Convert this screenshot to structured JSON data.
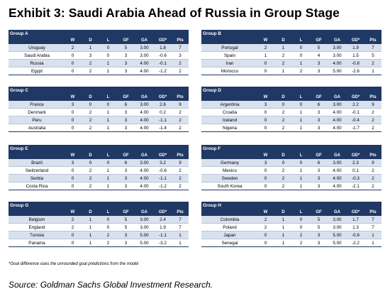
{
  "title": "Exhibit 3:  Saudi Arabia Ahead of Russia in Group Stage",
  "columns": [
    "",
    "W",
    "D",
    "L",
    "GF",
    "GA",
    "GD*",
    "Pts"
  ],
  "groups": [
    {
      "name": "Group A",
      "rows": [
        [
          "Uruguay",
          "2",
          "1",
          "0",
          "5",
          "3.00",
          "1.8",
          "7"
        ],
        [
          "Saudi Arabia",
          "0",
          "3",
          "0",
          "3",
          "3.00",
          "-0.6",
          "3"
        ],
        [
          "Russia",
          "0",
          "2",
          "1",
          "3",
          "4.00",
          "-0.1",
          "2"
        ],
        [
          "Egypt",
          "0",
          "2",
          "1",
          "3",
          "4.00",
          "-1.2",
          "2"
        ]
      ]
    },
    {
      "name": "Group B",
      "rows": [
        [
          "Portugal",
          "2",
          "1",
          "0",
          "5",
          "3.00",
          "1.9",
          "7"
        ],
        [
          "Spain",
          "1",
          "2",
          "0",
          "4",
          "3.00",
          "1.5",
          "5"
        ],
        [
          "Iran",
          "0",
          "2",
          "1",
          "3",
          "4.00",
          "-0.8",
          "2"
        ],
        [
          "Morocco",
          "0",
          "1",
          "2",
          "3",
          "5.00",
          "-2.6",
          "1"
        ]
      ]
    },
    {
      "name": "Group C",
      "rows": [
        [
          "France",
          "3",
          "0",
          "0",
          "6",
          "3.00",
          "2.6",
          "9"
        ],
        [
          "Denmark",
          "0",
          "2",
          "1",
          "3",
          "4.00",
          "0.2",
          "2"
        ],
        [
          "Peru",
          "0",
          "2",
          "1",
          "3",
          "4.00",
          "-1.1",
          "2"
        ],
        [
          "Australia",
          "0",
          "2",
          "1",
          "3",
          "4.00",
          "-1.4",
          "2"
        ]
      ]
    },
    {
      "name": "Group D",
      "rows": [
        [
          "Argentina",
          "3",
          "0",
          "0",
          "6",
          "3.00",
          "2.2",
          "9"
        ],
        [
          "Croatia",
          "0",
          "2",
          "1",
          "3",
          "4.00",
          "-0.1",
          "2"
        ],
        [
          "Iceland",
          "0",
          "2",
          "1",
          "3",
          "4.00",
          "-0.4",
          "2"
        ],
        [
          "Nigeria",
          "0",
          "2",
          "1",
          "3",
          "4.00",
          "-1.7",
          "2"
        ]
      ]
    },
    {
      "name": "Group E",
      "rows": [
        [
          "Brazil",
          "3",
          "0",
          "0",
          "6",
          "3.00",
          "3.2",
          "9"
        ],
        [
          "Switzerland",
          "0",
          "2",
          "1",
          "3",
          "4.00",
          "-0.8",
          "2"
        ],
        [
          "Serbia",
          "0",
          "2",
          "1",
          "3",
          "4.00",
          "-1.1",
          "2"
        ],
        [
          "Costa Rica",
          "0",
          "2",
          "1",
          "3",
          "4.00",
          "-1.2",
          "2"
        ]
      ]
    },
    {
      "name": "Group F",
      "rows": [
        [
          "Germany",
          "3",
          "0",
          "0",
          "6",
          "3.00",
          "2.3",
          "9"
        ],
        [
          "Mexico",
          "0",
          "2",
          "1",
          "3",
          "4.00",
          "0.1",
          "2"
        ],
        [
          "Sweden",
          "0",
          "2",
          "1",
          "3",
          "4.00",
          "-0.3",
          "2"
        ],
        [
          "South Korea",
          "0",
          "2",
          "1",
          "3",
          "4.00",
          "-2.1",
          "2"
        ]
      ]
    },
    {
      "name": "Group G",
      "rows": [
        [
          "Belgium",
          "2",
          "1",
          "0",
          "5",
          "3.00",
          "2.4",
          "7"
        ],
        [
          "England",
          "2",
          "1",
          "0",
          "5",
          "3.00",
          "1.9",
          "7"
        ],
        [
          "Tunisia",
          "0",
          "1",
          "2",
          "3",
          "5.00",
          "-1.1",
          "1"
        ],
        [
          "Panama",
          "0",
          "1",
          "2",
          "3",
          "5.00",
          "-3.2",
          "1"
        ]
      ]
    },
    {
      "name": "Group H",
      "rows": [
        [
          "Colombia",
          "2",
          "1",
          "0",
          "5",
          "3.00",
          "1.7",
          "7"
        ],
        [
          "Poland",
          "2",
          "1",
          "0",
          "5",
          "3.00",
          "1.3",
          "7"
        ],
        [
          "Japan",
          "0",
          "1",
          "2",
          "3",
          "5.00",
          "-0.8",
          "1"
        ],
        [
          "Senegal",
          "0",
          "1",
          "2",
          "3",
          "5.00",
          "-2.2",
          "1"
        ]
      ]
    }
  ],
  "footnote": "*Goal difference uses the unrounded goal predictions from the model",
  "source": "Source: Goldman Sachs Global Investment Research."
}
